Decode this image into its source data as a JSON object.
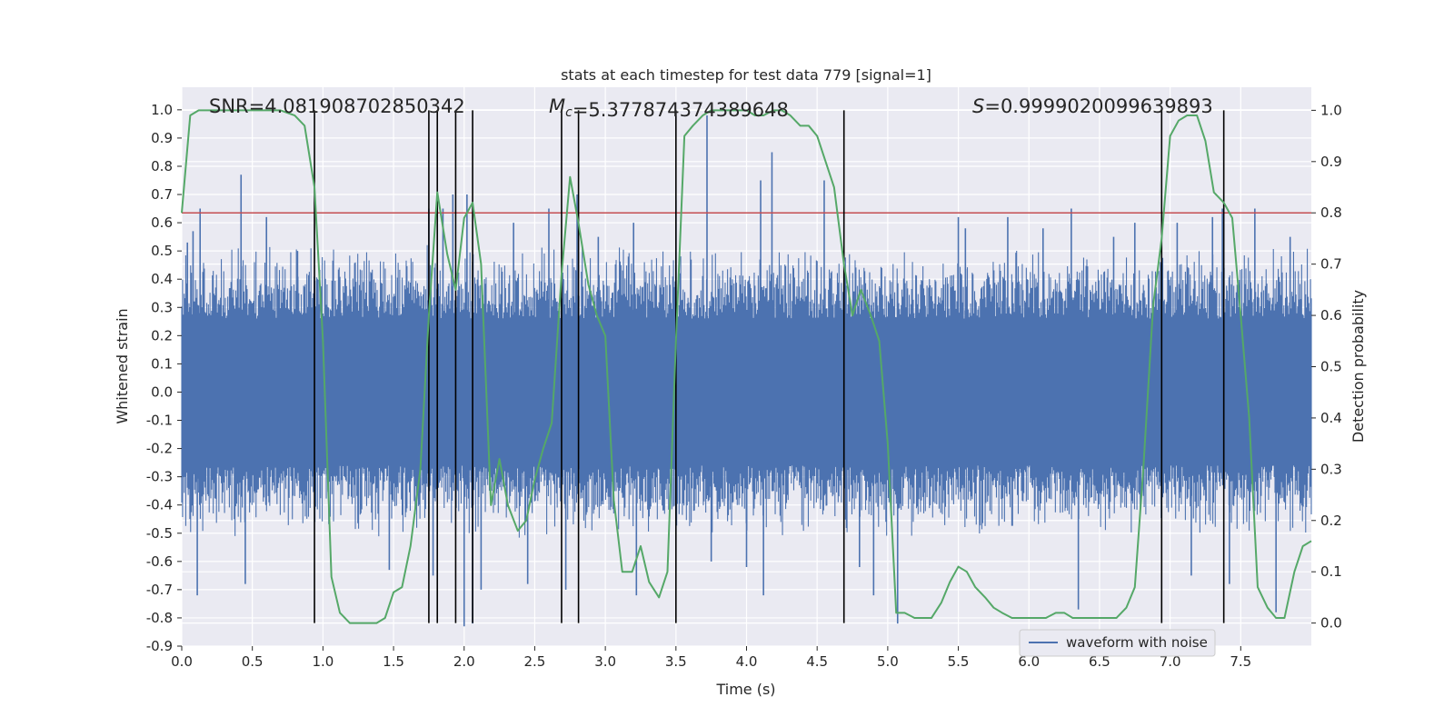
{
  "chart_data": {
    "type": "line",
    "title": "stats at each timestep for test data 779 [signal=1]",
    "xlabel": "Time (s)",
    "ylabel_left": "Whitened strain",
    "ylabel_right": "Detection probability",
    "xlim": [
      0.0,
      8.0
    ],
    "ylim_left": [
      -0.9,
      1.08
    ],
    "ylim_right": [
      -0.045,
      1.045
    ],
    "x_ticks": [
      "0.0",
      "0.5",
      "1.0",
      "1.5",
      "2.0",
      "2.5",
      "3.0",
      "3.5",
      "4.0",
      "4.5",
      "5.0",
      "5.5",
      "6.0",
      "6.5",
      "7.0",
      "7.5"
    ],
    "y_ticks_left": [
      "-0.9",
      "-0.8",
      "-0.7",
      "-0.6",
      "-0.5",
      "-0.4",
      "-0.3",
      "-0.2",
      "-0.1",
      "0.0",
      "0.1",
      "0.2",
      "0.3",
      "0.4",
      "0.5",
      "0.6",
      "0.7",
      "0.8",
      "0.9",
      "1.0"
    ],
    "y_ticks_right": [
      "0.0",
      "0.1",
      "0.2",
      "0.3",
      "0.4",
      "0.5",
      "0.6",
      "0.7",
      "0.8",
      "0.9",
      "1.0"
    ],
    "grid": true,
    "legend": {
      "position": "lower-right",
      "entries": [
        {
          "label": "waveform with noise",
          "color": "#4c72b0"
        }
      ]
    },
    "annotations": [
      {
        "text": "SNR=4.081908702850342",
        "parts": [
          {
            "t": "SNR",
            "style": "normal"
          },
          {
            "t": "=4.081908702850342",
            "style": "normal"
          }
        ]
      },
      {
        "text": "Mc=5.377874374389648",
        "parts": [
          {
            "t": "M",
            "style": "italic"
          },
          {
            "t": "c",
            "style": "sub-italic"
          },
          {
            "t": "=5.377874374389648",
            "style": "normal"
          }
        ]
      },
      {
        "text": "S=0.9999020099639893",
        "parts": [
          {
            "t": "S",
            "style": "italic"
          },
          {
            "t": "=0.9999020099639893",
            "style": "normal"
          }
        ]
      }
    ],
    "threshold_line": {
      "axis": "right",
      "value": 0.8,
      "color": "#c44e52"
    },
    "vertical_lines": {
      "x": [
        0.94,
        1.75,
        1.81,
        1.94,
        2.06,
        2.69,
        2.81,
        3.5,
        4.69,
        6.94,
        7.38
      ],
      "y_range_right": [
        0.0,
        1.0
      ],
      "color": "#000000"
    },
    "series": [
      {
        "name": "waveform with noise",
        "axis": "left",
        "color": "#4c72b0",
        "duration": 8.0,
        "core_amplitude": 0.26,
        "typical_peak": 0.45,
        "peaks": [
          {
            "x": 0.04,
            "y": 0.53
          },
          {
            "x": 0.08,
            "y": 0.57
          },
          {
            "x": 0.11,
            "y": -0.72
          },
          {
            "x": 0.13,
            "y": 0.65
          },
          {
            "x": 0.42,
            "y": 0.77
          },
          {
            "x": 0.45,
            "y": -0.68
          },
          {
            "x": 0.6,
            "y": 0.62
          },
          {
            "x": 0.82,
            "y": 0.5
          },
          {
            "x": 1.47,
            "y": -0.63
          },
          {
            "x": 1.75,
            "y": 0.65
          },
          {
            "x": 1.78,
            "y": -0.65
          },
          {
            "x": 1.85,
            "y": 0.65
          },
          {
            "x": 1.92,
            "y": 0.7
          },
          {
            "x": 2.0,
            "y": -0.83
          },
          {
            "x": 2.02,
            "y": 0.7
          },
          {
            "x": 2.06,
            "y": -0.82
          },
          {
            "x": 2.12,
            "y": -0.7
          },
          {
            "x": 2.35,
            "y": 0.6
          },
          {
            "x": 2.45,
            "y": -0.68
          },
          {
            "x": 2.6,
            "y": 0.65
          },
          {
            "x": 2.72,
            "y": -0.7
          },
          {
            "x": 2.8,
            "y": 0.7
          },
          {
            "x": 2.95,
            "y": 0.55
          },
          {
            "x": 3.2,
            "y": 0.6
          },
          {
            "x": 3.22,
            "y": -0.72
          },
          {
            "x": 3.5,
            "y": 0.68
          },
          {
            "x": 3.72,
            "y": 0.98
          },
          {
            "x": 3.75,
            "y": -0.6
          },
          {
            "x": 4.0,
            "y": -0.62
          },
          {
            "x": 4.1,
            "y": 0.75
          },
          {
            "x": 4.12,
            "y": -0.72
          },
          {
            "x": 4.18,
            "y": 0.85
          },
          {
            "x": 4.55,
            "y": 0.75
          },
          {
            "x": 4.8,
            "y": -0.62
          },
          {
            "x": 4.9,
            "y": -0.72
          },
          {
            "x": 5.07,
            "y": -0.82
          },
          {
            "x": 5.5,
            "y": 0.62
          },
          {
            "x": 5.55,
            "y": 0.58
          },
          {
            "x": 5.85,
            "y": 0.62
          },
          {
            "x": 6.1,
            "y": 0.58
          },
          {
            "x": 6.3,
            "y": 0.65
          },
          {
            "x": 6.35,
            "y": -0.77
          },
          {
            "x": 6.6,
            "y": 0.55
          },
          {
            "x": 6.75,
            "y": 0.6
          },
          {
            "x": 7.05,
            "y": 0.6
          },
          {
            "x": 7.15,
            "y": -0.65
          },
          {
            "x": 7.3,
            "y": 0.62
          },
          {
            "x": 7.37,
            "y": 0.65
          },
          {
            "x": 7.42,
            "y": -0.68
          },
          {
            "x": 7.6,
            "y": 0.65
          },
          {
            "x": 7.75,
            "y": -0.78
          },
          {
            "x": 7.85,
            "y": 0.55
          }
        ]
      },
      {
        "name": "",
        "axis": "right",
        "color": "#55a868",
        "x": [
          0.0,
          0.06,
          0.12,
          0.3,
          0.5,
          0.7,
          0.8,
          0.87,
          0.94,
          1.0,
          1.06,
          1.12,
          1.19,
          1.25,
          1.31,
          1.38,
          1.44,
          1.5,
          1.56,
          1.62,
          1.69,
          1.75,
          1.81,
          1.88,
          1.94,
          2.0,
          2.06,
          2.12,
          2.19,
          2.25,
          2.31,
          2.38,
          2.44,
          2.5,
          2.56,
          2.62,
          2.69,
          2.75,
          2.81,
          2.88,
          2.94,
          3.0,
          3.06,
          3.12,
          3.19,
          3.25,
          3.31,
          3.38,
          3.44,
          3.5,
          3.56,
          3.62,
          3.69,
          3.75,
          3.81,
          3.88,
          3.94,
          4.0,
          4.06,
          4.12,
          4.19,
          4.25,
          4.31,
          4.38,
          4.44,
          4.5,
          4.56,
          4.62,
          4.69,
          4.75,
          4.81,
          4.88,
          4.94,
          5.0,
          5.06,
          5.12,
          5.19,
          5.25,
          5.31,
          5.38,
          5.44,
          5.5,
          5.56,
          5.62,
          5.69,
          5.75,
          5.81,
          5.88,
          5.94,
          6.0,
          6.06,
          6.12,
          6.19,
          6.25,
          6.31,
          6.38,
          6.44,
          6.5,
          6.56,
          6.62,
          6.69,
          6.75,
          6.81,
          6.88,
          6.94,
          7.0,
          7.06,
          7.12,
          7.19,
          7.25,
          7.31,
          7.38,
          7.44,
          7.5,
          7.56,
          7.62,
          7.69,
          7.75,
          7.81,
          7.88,
          7.94,
          8.0
        ],
        "values": [
          0.8,
          0.99,
          1.0,
          1.0,
          1.0,
          1.0,
          0.99,
          0.97,
          0.85,
          0.55,
          0.09,
          0.02,
          0.0,
          0.0,
          0.0,
          0.0,
          0.01,
          0.06,
          0.07,
          0.15,
          0.3,
          0.6,
          0.84,
          0.72,
          0.65,
          0.79,
          0.82,
          0.7,
          0.23,
          0.32,
          0.23,
          0.18,
          0.2,
          0.28,
          0.34,
          0.39,
          0.68,
          0.87,
          0.78,
          0.66,
          0.6,
          0.56,
          0.24,
          0.1,
          0.1,
          0.15,
          0.08,
          0.05,
          0.1,
          0.55,
          0.95,
          0.97,
          0.99,
          1.0,
          1.0,
          1.0,
          1.0,
          1.0,
          0.99,
          0.99,
          1.0,
          1.0,
          0.99,
          0.97,
          0.97,
          0.95,
          0.9,
          0.85,
          0.7,
          0.6,
          0.65,
          0.6,
          0.55,
          0.35,
          0.02,
          0.02,
          0.01,
          0.01,
          0.01,
          0.04,
          0.08,
          0.11,
          0.1,
          0.07,
          0.05,
          0.03,
          0.02,
          0.01,
          0.01,
          0.01,
          0.01,
          0.01,
          0.02,
          0.02,
          0.01,
          0.01,
          0.01,
          0.01,
          0.01,
          0.01,
          0.03,
          0.07,
          0.3,
          0.62,
          0.75,
          0.95,
          0.98,
          0.99,
          0.99,
          0.94,
          0.84,
          0.82,
          0.79,
          0.6,
          0.4,
          0.07,
          0.03,
          0.01,
          0.01,
          0.1,
          0.15,
          0.16
        ]
      }
    ]
  }
}
